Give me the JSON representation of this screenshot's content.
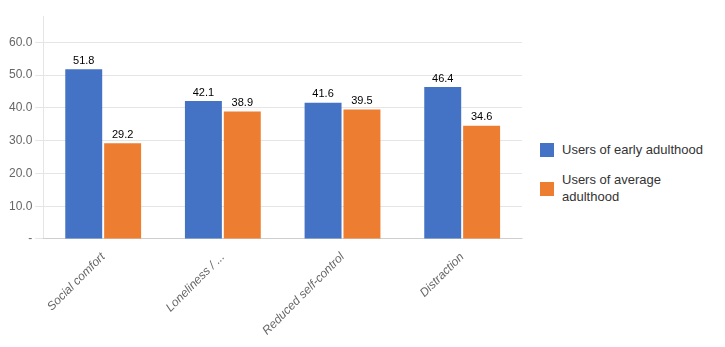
{
  "chart_data": {
    "type": "bar",
    "categories": [
      "Social comfort",
      "Loneliness / ...",
      "Reduced self-control",
      "Distraction"
    ],
    "series": [
      {
        "name": "Users of early adulthood",
        "color": "#4472C4",
        "values": [
          51.8,
          42.1,
          41.6,
          46.4
        ]
      },
      {
        "name": "Users of average\nadulthood",
        "color": "#ED7D31",
        "values": [
          29.2,
          38.9,
          39.5,
          34.6
        ]
      }
    ],
    "ylim": [
      0,
      68
    ],
    "yticks": [
      {
        "value": 0,
        "label": "-"
      },
      {
        "value": 10,
        "label": "10.0"
      },
      {
        "value": 20,
        "label": "20.0"
      },
      {
        "value": 30,
        "label": "30.0"
      },
      {
        "value": 40,
        "label": "40.0"
      },
      {
        "value": 50,
        "label": "50.0"
      },
      {
        "value": 60,
        "label": "60.0"
      }
    ],
    "grid": "y",
    "legend": "right",
    "data_labels": true
  }
}
